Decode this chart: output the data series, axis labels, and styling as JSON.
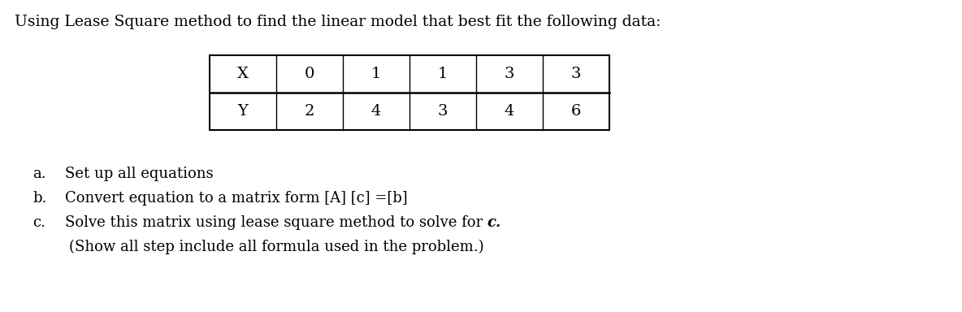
{
  "title": "Using Lease Square method to find the linear model that best fit the following data:",
  "title_fontsize": 13.5,
  "table_x_labels": [
    "X",
    "0",
    "1",
    "1",
    "3",
    "3"
  ],
  "table_y_labels": [
    "Y",
    "2",
    "4",
    "3",
    "4",
    "6"
  ],
  "items": [
    {
      "label": "a.",
      "text": "Set up all equations",
      "has_italic": false
    },
    {
      "label": "b.",
      "text": "Convert equation to a matrix form [A] [c] =[b]",
      "has_italic": false
    },
    {
      "label": "c.",
      "text": "Solve this matrix using lease square method to solve for ",
      "italic_part": "c.",
      "has_italic": true
    },
    {
      "label": "",
      "text": "(Show all step include all formula used in the problem.)",
      "has_italic": false
    }
  ],
  "font_family": "DejaVu Serif",
  "body_fontsize": 13,
  "background_color": "#ffffff",
  "text_color": "#000000"
}
